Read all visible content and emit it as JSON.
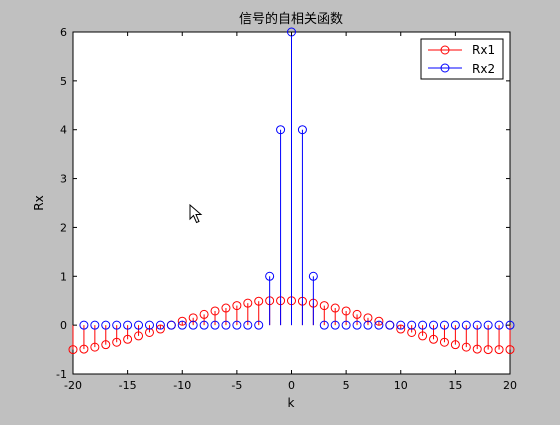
{
  "chart_data": {
    "type": "stem",
    "title": "信号的自相关函数",
    "xlabel": "k",
    "ylabel": "Rx",
    "xlim": [
      -20,
      20
    ],
    "ylim": [
      -1,
      6
    ],
    "xticks": [
      -20,
      -15,
      -10,
      -5,
      0,
      5,
      10,
      15,
      20
    ],
    "yticks": [
      -1,
      0,
      1,
      2,
      3,
      4,
      5,
      6
    ],
    "xtick_labels": [
      "-20",
      "-15",
      "-10",
      "-5",
      "0",
      "5",
      "10",
      "15",
      "20"
    ],
    "ytick_labels": [
      "-1",
      "0",
      "1",
      "2",
      "3",
      "4",
      "5",
      "6"
    ],
    "grid": false,
    "legend_position": "top-right",
    "x": [
      -19,
      -18,
      -17,
      -16,
      -15,
      -14,
      -13,
      -12,
      -11,
      -10,
      -9,
      -8,
      -7,
      -6,
      -5,
      -4,
      -3,
      -2,
      -1,
      0,
      1,
      2,
      3,
      4,
      5,
      6,
      7,
      8,
      9,
      10,
      11,
      12,
      13,
      14,
      15,
      16,
      17,
      18,
      19,
      20
    ],
    "series": [
      {
        "name": "Rx1",
        "color": "#ff0000",
        "x": [
          -20,
          -19,
          -18,
          -17,
          -16,
          -15,
          -14,
          -13,
          -12,
          -11,
          -10,
          -9,
          -8,
          -7,
          -6,
          -5,
          -4,
          -3,
          -2,
          -1,
          0,
          1,
          2,
          3,
          4,
          5,
          6,
          7,
          8,
          9,
          10,
          11,
          12,
          13,
          14,
          15,
          16,
          17,
          18,
          19,
          20
        ],
        "values": [
          -0.5,
          -0.49,
          -0.45,
          -0.4,
          -0.35,
          -0.29,
          -0.22,
          -0.15,
          -0.08,
          0.0,
          0.08,
          0.15,
          0.22,
          0.29,
          0.35,
          0.4,
          0.45,
          0.49,
          0.5,
          0.5,
          0.5,
          0.49,
          0.45,
          0.4,
          0.35,
          0.29,
          0.22,
          0.15,
          0.08,
          0.0,
          -0.08,
          -0.15,
          -0.22,
          -0.29,
          -0.35,
          -0.4,
          -0.45,
          -0.49,
          -0.5,
          -0.5,
          -0.5
        ]
      },
      {
        "name": "Rx2",
        "color": "#0000ff",
        "x": [
          -19,
          -18,
          -17,
          -16,
          -15,
          -14,
          -13,
          -12,
          -11,
          -10,
          -9,
          -8,
          -7,
          -6,
          -5,
          -4,
          -3,
          -2,
          -1,
          0,
          1,
          2,
          3,
          4,
          5,
          6,
          7,
          8,
          9,
          10,
          11,
          12,
          13,
          14,
          15,
          16,
          17,
          18,
          19,
          20
        ],
        "values": [
          0,
          0,
          0,
          0,
          0,
          0,
          0,
          0,
          0,
          0,
          0,
          0,
          0,
          0,
          0,
          0,
          0,
          1,
          4,
          6,
          4,
          1,
          0,
          0,
          0,
          0,
          0,
          0,
          0,
          0,
          0,
          0,
          0,
          0,
          0,
          0,
          0,
          0,
          0,
          0
        ]
      }
    ]
  }
}
